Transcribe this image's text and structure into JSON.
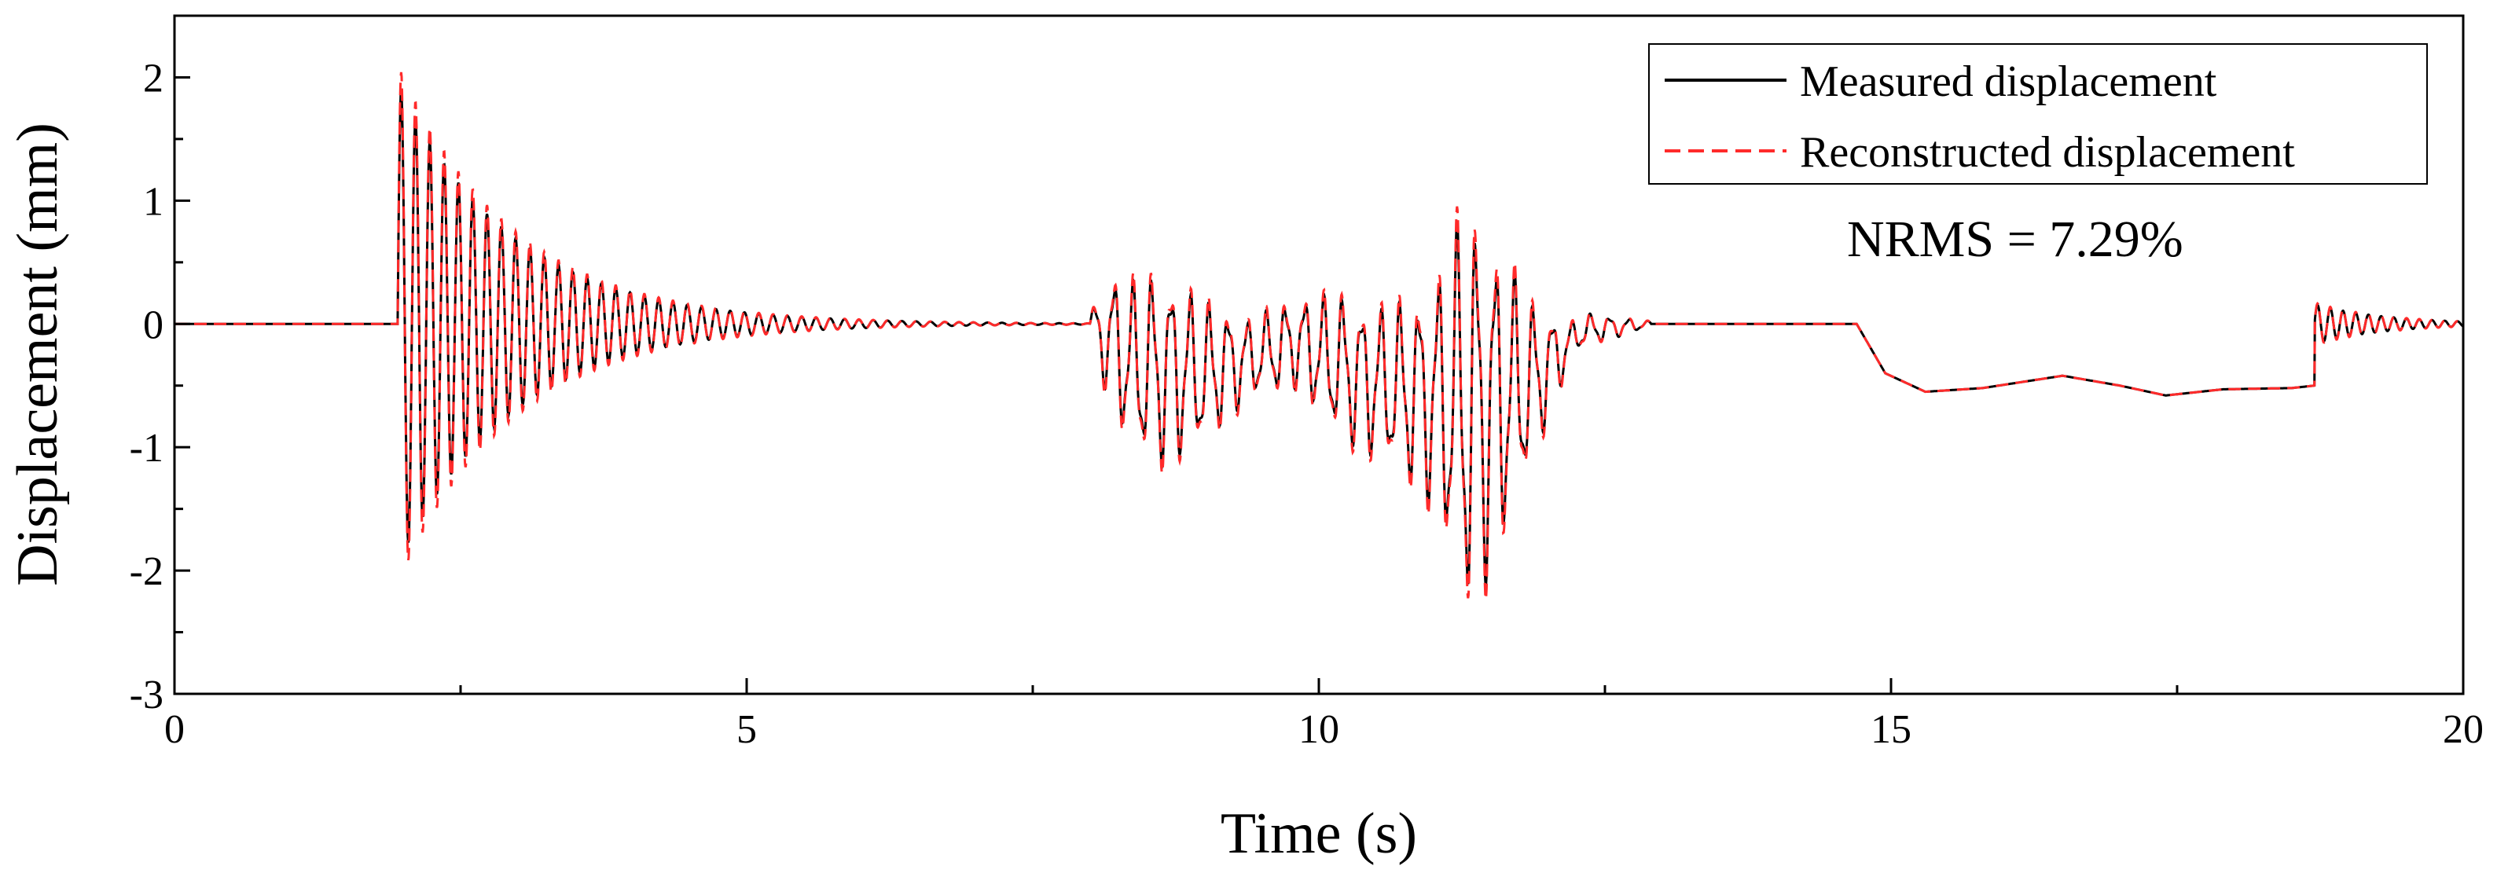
{
  "chart_data": {
    "type": "line",
    "title": "",
    "xlabel": "Time (s)",
    "ylabel": "Displacement (mm)",
    "xlim": [
      0,
      20
    ],
    "ylim": [
      -3,
      2.5
    ],
    "xticks": [
      0,
      5,
      10,
      15,
      20
    ],
    "xtick_labels": [
      "0",
      "5",
      "10",
      "15",
      "20"
    ],
    "yticks": [
      -3,
      -2,
      -1,
      0,
      1,
      2
    ],
    "ytick_labels": [
      "-3",
      "-2",
      "-1",
      "0",
      "1",
      "2"
    ],
    "grid": false,
    "legend_position": "top-right",
    "annotation": "NRMS = 7.29%",
    "series": [
      {
        "name": "Measured displacement",
        "color": "#000000",
        "style": "solid",
        "segments": [
          {
            "kind": "flat",
            "t0": 0,
            "t1": 1.95,
            "level": 0
          },
          {
            "kind": "decay",
            "t0": 1.95,
            "t1": 8.0,
            "amplitude": 1.95,
            "frequency_hz": 8.0,
            "decay_rate": 1.0
          },
          {
            "kind": "burst",
            "t0": 8.0,
            "t1": 12.9,
            "envelope": [
              [
                8.0,
                0.1
              ],
              [
                8.2,
                0.55
              ],
              [
                8.6,
                0.75
              ],
              [
                9.0,
                0.55
              ],
              [
                9.4,
                0.3
              ],
              [
                9.8,
                0.35
              ],
              [
                10.2,
                0.55
              ],
              [
                10.6,
                0.6
              ],
              [
                11.0,
                0.85
              ],
              [
                11.3,
                1.6
              ],
              [
                11.6,
                1.1
              ],
              [
                11.9,
                0.55
              ],
              [
                12.2,
                0.15
              ],
              [
                12.6,
                0.08
              ],
              [
                12.9,
                0.02
              ]
            ],
            "frequency_hz": 6.0,
            "offset_shape": [
              [
                8.0,
                0
              ],
              [
                8.4,
                -0.35
              ],
              [
                9.0,
                -0.4
              ],
              [
                9.8,
                -0.15
              ],
              [
                10.4,
                -0.45
              ],
              [
                11.0,
                -0.6
              ],
              [
                11.4,
                -0.7
              ],
              [
                11.9,
                -0.45
              ],
              [
                12.3,
                -0.05
              ],
              [
                12.9,
                0
              ]
            ]
          },
          {
            "kind": "flat",
            "t0": 12.9,
            "t1": 14.7,
            "level": 0
          },
          {
            "kind": "drift",
            "points": [
              [
                14.7,
                0
              ],
              [
                14.95,
                -0.4
              ],
              [
                15.3,
                -0.55
              ],
              [
                15.8,
                -0.52
              ],
              [
                16.5,
                -0.42
              ],
              [
                17.0,
                -0.5
              ],
              [
                17.4,
                -0.58
              ],
              [
                17.9,
                -0.53
              ],
              [
                18.5,
                -0.52
              ],
              [
                18.7,
                -0.5
              ]
            ]
          },
          {
            "kind": "decay",
            "t0": 18.7,
            "t1": 20.0,
            "amplitude": 0.16,
            "frequency_hz": 9.0,
            "decay_rate": 1.6
          }
        ]
      },
      {
        "name": "Reconstructed displacement",
        "color": "#ff2a2a",
        "style": "dashed",
        "amplitude_scale": 1.08
      }
    ]
  }
}
